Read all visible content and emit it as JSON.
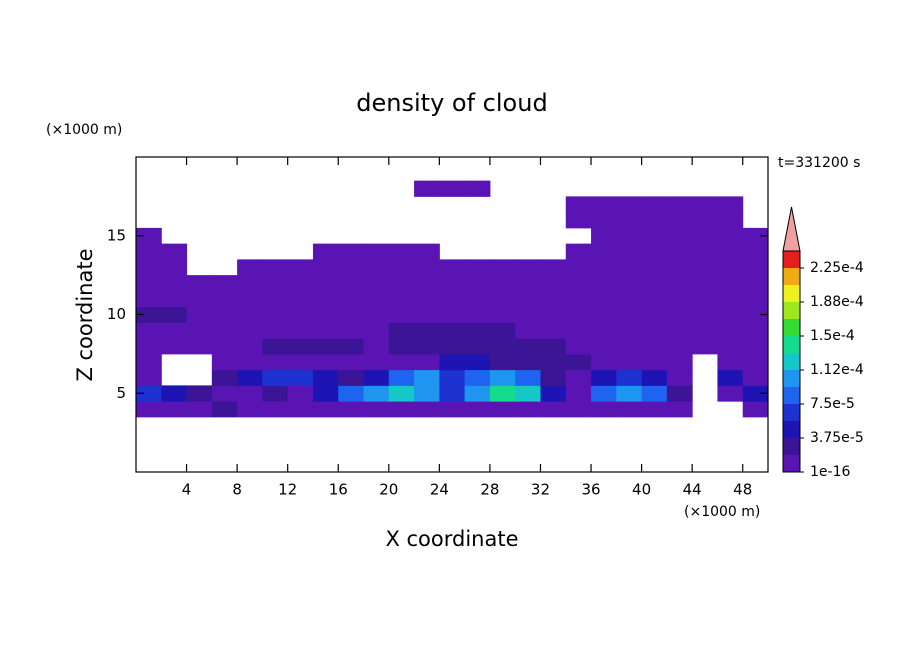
{
  "chart_data": {
    "type": "contourf",
    "title": "density of cloud",
    "x_label": "X coordinate",
    "y_label": "Z coordinate",
    "x_unit": "(×1000 m)",
    "y_unit": "(×1000 m)",
    "annotation": "t=331200 s",
    "xlim": [
      0,
      50
    ],
    "ylim": [
      0,
      20
    ],
    "xticks": [
      4,
      8,
      12,
      16,
      20,
      24,
      28,
      32,
      36,
      40,
      44,
      48
    ],
    "yticks": [
      5,
      10,
      15
    ],
    "x": [
      1,
      3,
      5,
      7,
      9,
      11,
      13,
      15,
      17,
      19,
      21,
      23,
      25,
      27,
      29,
      31,
      33,
      35,
      37,
      39,
      41,
      43,
      45,
      47,
      49
    ],
    "y": [
      4,
      5,
      6,
      7,
      8,
      9,
      10,
      11,
      12,
      13,
      14,
      15,
      16,
      17,
      18
    ],
    "z": [
      [
        1e-06,
        1e-06,
        1e-06,
        2.5e-05,
        1e-06,
        1e-06,
        1e-06,
        1e-06,
        1e-06,
        1e-06,
        1e-06,
        1e-06,
        1e-06,
        1e-06,
        1e-06,
        1e-06,
        1e-06,
        1e-06,
        1e-06,
        1e-06,
        1e-06,
        1e-06,
        null,
        null,
        1e-06
      ],
      [
        6e-05,
        4.5e-05,
        2.5e-05,
        1e-06,
        1e-06,
        2.5e-05,
        1e-06,
        4.5e-05,
        8e-05,
        0.0001,
        0.00012,
        0.0001,
        6e-05,
        0.0001,
        0.000135,
        0.00012,
        4.5e-05,
        1e-06,
        8e-05,
        0.0001,
        8e-05,
        2.5e-05,
        null,
        1e-06,
        4.5e-05
      ],
      [
        1e-06,
        null,
        null,
        2.5e-05,
        4.5e-05,
        6e-05,
        6e-05,
        4.5e-05,
        2.5e-05,
        4.5e-05,
        8e-05,
        0.0001,
        6e-05,
        8e-05,
        0.0001,
        8e-05,
        2.5e-05,
        1e-06,
        4.5e-05,
        6e-05,
        4.5e-05,
        1e-06,
        null,
        4.5e-05,
        1e-06
      ],
      [
        1e-06,
        null,
        null,
        1e-06,
        1e-06,
        1e-06,
        1e-06,
        1e-06,
        1e-06,
        1e-06,
        1e-06,
        1e-06,
        4.5e-05,
        4.5e-05,
        2.5e-05,
        2.5e-05,
        2.5e-05,
        2.5e-05,
        1e-06,
        1e-06,
        1e-06,
        1e-06,
        null,
        1e-06,
        1e-06
      ],
      [
        1e-06,
        1e-06,
        1e-06,
        1e-06,
        1e-06,
        2.5e-05,
        2.5e-05,
        2.5e-05,
        2.5e-05,
        1e-06,
        2.5e-05,
        2.5e-05,
        2.5e-05,
        2.5e-05,
        2.5e-05,
        2.5e-05,
        2.5e-05,
        1e-06,
        1e-06,
        1e-06,
        1e-06,
        1e-06,
        1e-06,
        1e-06,
        1e-06
      ],
      [
        1e-06,
        1e-06,
        1e-06,
        1e-06,
        1e-06,
        1e-06,
        1e-06,
        1e-06,
        1e-06,
        1e-06,
        2.5e-05,
        2.5e-05,
        2.5e-05,
        2.5e-05,
        2.5e-05,
        1e-06,
        1e-06,
        1e-06,
        1e-06,
        1e-06,
        1e-06,
        1e-06,
        1e-06,
        1e-06,
        1e-06
      ],
      [
        2.5e-05,
        2.5e-05,
        1e-06,
        1e-06,
        1e-06,
        1e-06,
        1e-06,
        1e-06,
        1e-06,
        1e-06,
        1e-06,
        1e-06,
        1e-06,
        1e-06,
        1e-06,
        1e-06,
        1e-06,
        1e-06,
        1e-06,
        1e-06,
        1e-06,
        1e-06,
        1e-06,
        1e-06,
        1e-06
      ],
      [
        1e-06,
        1e-06,
        1e-06,
        1e-06,
        1e-06,
        1e-06,
        1e-06,
        1e-06,
        1e-06,
        1e-06,
        1e-06,
        1e-06,
        1e-06,
        1e-06,
        1e-06,
        1e-06,
        1e-06,
        1e-06,
        1e-06,
        1e-06,
        1e-06,
        1e-06,
        1e-06,
        1e-06,
        1e-06
      ],
      [
        1e-06,
        1e-06,
        1e-06,
        1e-06,
        1e-06,
        1e-06,
        1e-06,
        1e-06,
        1e-06,
        1e-06,
        1e-06,
        1e-06,
        1e-06,
        1e-06,
        1e-06,
        1e-06,
        1e-06,
        1e-06,
        1e-06,
        1e-06,
        1e-06,
        1e-06,
        1e-06,
        1e-06,
        1e-06
      ],
      [
        1e-06,
        1e-06,
        null,
        null,
        1e-06,
        1e-06,
        1e-06,
        1e-06,
        1e-06,
        1e-06,
        1e-06,
        1e-06,
        1e-06,
        1e-06,
        1e-06,
        1e-06,
        1e-06,
        1e-06,
        1e-06,
        1e-06,
        1e-06,
        1e-06,
        1e-06,
        1e-06,
        1e-06
      ],
      [
        1e-06,
        1e-06,
        null,
        null,
        null,
        null,
        null,
        1e-06,
        1e-06,
        1e-06,
        1e-06,
        1e-06,
        null,
        null,
        null,
        null,
        null,
        1e-06,
        1e-06,
        1e-06,
        1e-06,
        1e-06,
        1e-06,
        1e-06,
        1e-06
      ],
      [
        1e-06,
        null,
        null,
        null,
        null,
        null,
        null,
        null,
        null,
        null,
        null,
        null,
        null,
        null,
        null,
        null,
        null,
        null,
        1e-06,
        1e-06,
        1e-06,
        1e-06,
        1e-06,
        1e-06,
        1e-06
      ],
      [
        null,
        null,
        null,
        null,
        null,
        null,
        null,
        null,
        null,
        null,
        null,
        null,
        null,
        null,
        null,
        null,
        null,
        1e-06,
        1e-06,
        1e-06,
        1e-06,
        1e-06,
        1e-06,
        1e-06,
        null
      ],
      [
        null,
        null,
        null,
        null,
        null,
        null,
        null,
        null,
        null,
        null,
        null,
        null,
        null,
        null,
        null,
        null,
        null,
        1e-06,
        1e-06,
        1e-06,
        1e-06,
        1e-06,
        1e-06,
        1e-06,
        null
      ],
      [
        null,
        null,
        null,
        null,
        null,
        null,
        null,
        null,
        null,
        null,
        null,
        1e-06,
        1e-06,
        1e-06,
        null,
        null,
        null,
        null,
        null,
        null,
        null,
        null,
        null,
        null,
        null
      ]
    ],
    "levels": [
      1e-16,
      1.875e-05,
      3.75e-05,
      5.625e-05,
      7.5e-05,
      9.375e-05,
      0.0001125,
      0.00013125,
      0.00015,
      0.00016875,
      0.0001875,
      0.00020625,
      0.000225,
      0.00024375
    ],
    "colors": [
      "#5a14b4",
      "#3c1496",
      "#1e14b4",
      "#1e32d2",
      "#1e64f0",
      "#1e96f0",
      "#14c8c8",
      "#14dc8c",
      "#32dc32",
      "#a0e61e",
      "#f0f01e",
      "#f0aa14",
      "#e61e1e"
    ],
    "extend_color": "#f0a0a0",
    "colorbar_ticks": [
      {
        "value": 1e-16,
        "label": "1e-16"
      },
      {
        "value": 3.75e-05,
        "label": "3.75e-5"
      },
      {
        "value": 7.5e-05,
        "label": "7.5e-5"
      },
      {
        "value": 0.0001125,
        "label": "1.12e-4"
      },
      {
        "value": 0.00015,
        "label": "1.5e-4"
      },
      {
        "value": 0.0001875,
        "label": "1.88e-4"
      },
      {
        "value": 0.000225,
        "label": "2.25e-4"
      }
    ]
  }
}
